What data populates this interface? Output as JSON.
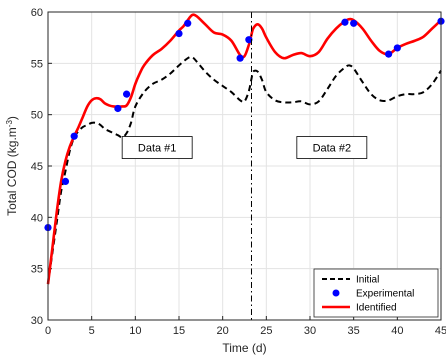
{
  "chart_data": {
    "type": "line",
    "xlabel": "Time (d)",
    "ylabel": "Total COD (kg.m",
    "ylabel_sup": "-3",
    "ylabel_close": ")",
    "xlim": [
      0,
      45
    ],
    "ylim": [
      30,
      60
    ],
    "x_ticks": [
      0,
      5,
      10,
      15,
      20,
      25,
      30,
      35,
      40,
      45
    ],
    "y_ticks": [
      30,
      35,
      40,
      45,
      50,
      55,
      60
    ],
    "grid": true,
    "legend_position": "bottom-right",
    "vertical_line_x": 23.3,
    "annotations": [
      {
        "id": "data1",
        "text": "Data #1",
        "x": 12.5,
        "y": 46.8
      },
      {
        "id": "data2",
        "text": "Data #2",
        "x": 32.5,
        "y": 46.8
      }
    ],
    "series": [
      {
        "name": "Initial",
        "style": "dashed",
        "color": "#000000",
        "x": [
          0,
          0.5,
          1,
          1.5,
          2,
          2.5,
          3,
          3.5,
          4,
          4.5,
          5,
          5.5,
          6,
          6.5,
          7,
          7.5,
          8,
          8.5,
          9,
          9.5,
          10,
          11,
          12,
          13,
          14,
          15,
          16,
          16.5,
          17,
          18,
          19,
          20,
          21,
          22,
          22.5,
          23,
          23.3,
          23.5,
          24,
          24.5,
          25,
          26,
          27,
          28,
          29,
          30,
          31,
          32,
          33,
          34,
          34.5,
          35,
          36,
          37,
          38,
          39,
          40,
          41,
          42,
          43,
          44,
          45
        ],
        "y": [
          33.5,
          36.5,
          39.5,
          42.5,
          44.5,
          46.5,
          47.8,
          48.4,
          48.8,
          49.0,
          49.2,
          49.2,
          49.0,
          48.6,
          48.4,
          48.2,
          48.0,
          47.8,
          48.2,
          49.2,
          50.8,
          52.2,
          53.0,
          53.4,
          54.0,
          54.8,
          55.5,
          55.6,
          55.2,
          54.2,
          53.4,
          52.8,
          52.2,
          51.4,
          51.3,
          52.3,
          53.5,
          54.2,
          54.2,
          53.4,
          52.2,
          51.4,
          51.2,
          51.2,
          51.3,
          51.0,
          51.3,
          52.5,
          53.8,
          54.6,
          54.8,
          54.5,
          53.2,
          52.0,
          51.4,
          51.4,
          51.8,
          52.0,
          52.0,
          52.2,
          53.0,
          54.3
        ]
      },
      {
        "name": "Experimental",
        "style": "markers",
        "color": "#0000ff",
        "x": [
          0,
          2,
          3,
          8,
          9,
          15,
          16,
          22,
          23,
          34,
          35,
          39,
          40,
          45
        ],
        "y": [
          39.0,
          43.5,
          47.9,
          50.6,
          52.0,
          57.9,
          58.9,
          55.5,
          57.3,
          59.0,
          58.9,
          55.9,
          56.5,
          59.1
        ]
      },
      {
        "name": "Identified",
        "style": "solid",
        "color": "#ff0000",
        "x": [
          0,
          0.5,
          1,
          1.5,
          2,
          2.5,
          3,
          3.5,
          4,
          4.5,
          5,
          5.5,
          6,
          6.5,
          7,
          7.5,
          8,
          8.5,
          9,
          9.5,
          10,
          10.5,
          11,
          12,
          13,
          14,
          15,
          15.5,
          16,
          16.5,
          17,
          18,
          19,
          20,
          21,
          22,
          22.5,
          23,
          23.3,
          23.5,
          24,
          24.5,
          25,
          26,
          27,
          28,
          29,
          30,
          31,
          32,
          33,
          34,
          34.5,
          35,
          36,
          37,
          38,
          39,
          40,
          41,
          42,
          43,
          44,
          45
        ],
        "y": [
          33.5,
          37.0,
          40.5,
          43.5,
          45.5,
          46.9,
          47.9,
          48.8,
          49.8,
          50.8,
          51.4,
          51.6,
          51.5,
          51.1,
          50.9,
          50.8,
          50.8,
          50.8,
          50.9,
          51.7,
          53.0,
          54.0,
          54.8,
          55.8,
          56.4,
          57.2,
          58.2,
          58.6,
          59.2,
          59.7,
          59.6,
          58.8,
          58.0,
          57.8,
          57.2,
          55.8,
          55.7,
          56.8,
          57.8,
          58.4,
          58.8,
          58.4,
          57.5,
          56.1,
          55.5,
          55.8,
          56.0,
          55.7,
          56.1,
          57.4,
          58.4,
          59.1,
          59.3,
          59.2,
          58.4,
          57.2,
          56.2,
          55.9,
          56.5,
          56.9,
          57.2,
          57.6,
          58.4,
          59.2
        ]
      }
    ]
  }
}
